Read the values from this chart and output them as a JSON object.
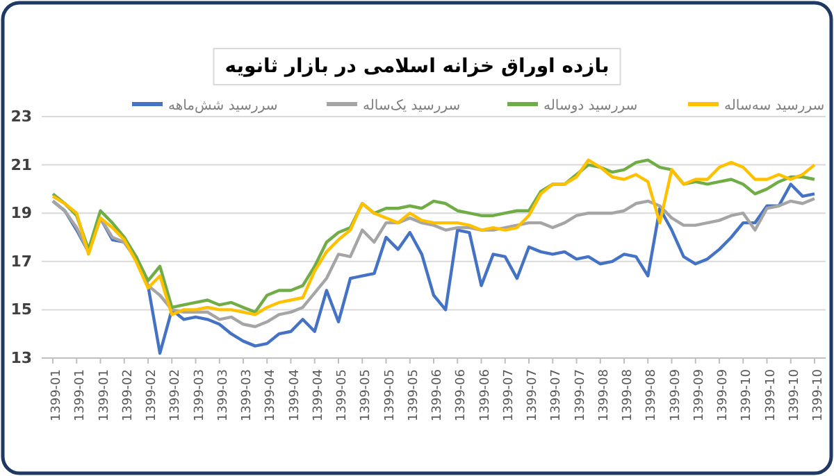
{
  "chart_data": {
    "type": "line",
    "title": "بازده اوراق خزانه اسلامی در بازار ثانویه",
    "categories": [
      "1399-01",
      null,
      "1399-01",
      null,
      "1399-01",
      null,
      "1399-02",
      null,
      "1399-02",
      null,
      "1399-02",
      null,
      "1399-03",
      null,
      "1399-03",
      null,
      "1399-03",
      null,
      "1399-04",
      null,
      "1399-04",
      null,
      "1399-04",
      null,
      "1399-05",
      null,
      "1399-05",
      null,
      "1399-05",
      null,
      "1399-05",
      null,
      "1399-06",
      null,
      "1399-06",
      null,
      "1399-06",
      null,
      "1399-07",
      null,
      "1399-07",
      null,
      "1399-07",
      null,
      "1399-07",
      null,
      "1399-08",
      null,
      "1399-08",
      null,
      "1399-08",
      null,
      "1399-09",
      null,
      "1399-09",
      null,
      "1399-09",
      null,
      "1399-10",
      null,
      "1399-10",
      null,
      "1399-10",
      null,
      "1399-10"
    ],
    "series": [
      {
        "name": "سررسید شش‌ماهه",
        "color": "#4472c4",
        "values": [
          19.5,
          19.1,
          18.3,
          17.4,
          18.8,
          17.9,
          17.8,
          17.1,
          16.0,
          13.2,
          15.0,
          14.6,
          14.7,
          14.6,
          14.4,
          14.0,
          13.7,
          13.5,
          13.6,
          14.0,
          14.1,
          14.6,
          14.1,
          15.8,
          14.5,
          16.3,
          16.4,
          16.5,
          18.0,
          17.5,
          18.2,
          17.3,
          15.6,
          15.0,
          18.3,
          18.2,
          16.0,
          17.3,
          17.2,
          16.3,
          17.6,
          17.4,
          17.3,
          17.4,
          17.1,
          17.2,
          16.9,
          17.0,
          17.3,
          17.2,
          16.4,
          19.2,
          18.3,
          17.2,
          16.9,
          17.1,
          17.5,
          18.0,
          18.6,
          18.6,
          19.3,
          19.3,
          20.2,
          19.7,
          19.8
        ]
      },
      {
        "name": "سررسید یک‌ساله",
        "color": "#a5a5a5",
        "values": [
          19.5,
          19.1,
          18.4,
          17.4,
          18.8,
          18.0,
          17.8,
          17.2,
          16.0,
          15.6,
          15.0,
          14.9,
          14.9,
          14.9,
          14.6,
          14.7,
          14.4,
          14.3,
          14.5,
          14.8,
          14.9,
          15.1,
          15.7,
          16.3,
          17.3,
          17.2,
          18.3,
          17.8,
          18.6,
          18.6,
          18.8,
          18.6,
          18.5,
          18.3,
          18.4,
          18.4,
          18.3,
          18.3,
          18.4,
          18.5,
          18.6,
          18.6,
          18.4,
          18.6,
          18.9,
          19.0,
          19.0,
          19.0,
          19.1,
          19.4,
          19.5,
          19.3,
          18.8,
          18.5,
          18.5,
          18.6,
          18.7,
          18.9,
          19.0,
          18.3,
          19.2,
          19.3,
          19.5,
          19.4,
          19.6
        ]
      },
      {
        "name": "سررسید دوساله",
        "color": "#70ad47",
        "values": [
          19.8,
          19.4,
          18.9,
          17.5,
          19.1,
          18.6,
          18.0,
          17.2,
          16.2,
          16.8,
          15.1,
          15.2,
          15.3,
          15.4,
          15.2,
          15.3,
          15.1,
          14.9,
          15.6,
          15.8,
          15.8,
          16.0,
          16.8,
          17.8,
          18.2,
          18.4,
          19.4,
          19.0,
          19.2,
          19.2,
          19.3,
          19.2,
          19.5,
          19.4,
          19.1,
          19.0,
          18.9,
          18.9,
          19.0,
          19.1,
          19.1,
          19.9,
          20.2,
          20.2,
          20.6,
          21.0,
          20.9,
          20.7,
          20.8,
          21.1,
          21.2,
          20.9,
          20.8,
          20.2,
          20.3,
          20.2,
          20.3,
          20.4,
          20.2,
          19.8,
          20.0,
          20.3,
          20.5,
          20.5,
          20.4
        ]
      },
      {
        "name": "سررسید سه‌ساله",
        "color": "#ffc000",
        "values": [
          19.7,
          19.4,
          19.0,
          17.3,
          18.8,
          18.4,
          17.9,
          17.0,
          15.9,
          16.4,
          14.8,
          15.0,
          15.0,
          15.1,
          15.0,
          15.0,
          14.9,
          14.8,
          15.1,
          15.3,
          15.4,
          15.5,
          16.6,
          17.4,
          17.9,
          18.3,
          19.4,
          19.0,
          18.8,
          18.6,
          19.0,
          18.7,
          18.6,
          18.6,
          18.6,
          18.5,
          18.3,
          18.4,
          18.3,
          18.4,
          18.9,
          19.8,
          20.2,
          20.2,
          20.5,
          21.2,
          20.9,
          20.5,
          20.4,
          20.6,
          20.3,
          18.6,
          20.8,
          20.2,
          20.4,
          20.4,
          20.9,
          21.1,
          20.9,
          20.4,
          20.4,
          20.6,
          20.4,
          20.6,
          21.0
        ]
      }
    ],
    "ylim": [
      13,
      23
    ],
    "yticks": [
      13,
      15,
      17,
      19,
      21,
      23
    ],
    "grid": "y",
    "legend": "top",
    "marker": "none",
    "line_style": "solid"
  }
}
